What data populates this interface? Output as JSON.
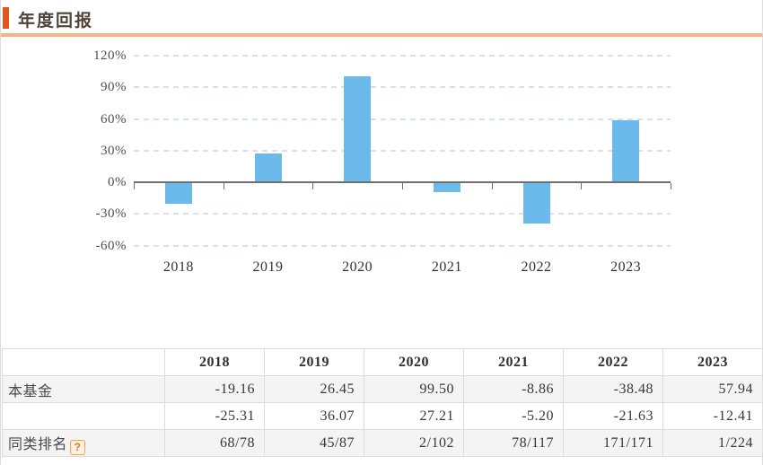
{
  "header": {
    "title": "年度回报"
  },
  "colors": {
    "accent_orange": "#E5541A",
    "underline_orange": "#FBB080",
    "bar_blue": "#6CBAEC",
    "grid_line": "#D9DFEC",
    "axis_line": "#6F6F6F"
  },
  "chart_data": {
    "type": "bar",
    "title": "年度回报",
    "categories": [
      "2018",
      "2019",
      "2020",
      "2021",
      "2022",
      "2023"
    ],
    "series": [
      {
        "name": "本基金",
        "values": [
          -19.16,
          26.45,
          99.5,
          -8.86,
          -38.48,
          57.94
        ]
      }
    ],
    "unit": "%",
    "xlabel": "",
    "ylabel": "",
    "ylim": [
      -60,
      120
    ],
    "yticks": [
      120,
      90,
      60,
      30,
      0,
      -30,
      -60
    ],
    "ytick_labels": [
      "120%",
      "90%",
      "60%",
      "30%",
      "0%",
      "-30%",
      "-60%"
    ],
    "grid": "horizontal-dashed",
    "legend": "none",
    "bar_color": "#6CBAEC"
  },
  "table": {
    "columns": [
      "",
      "2018",
      "2019",
      "2020",
      "2021",
      "2022",
      "2023"
    ],
    "help_glyph": "?",
    "rows": [
      {
        "label": "本基金",
        "has_help": false,
        "values": [
          "-19.16",
          "26.45",
          "99.50",
          "-8.86",
          "-38.48",
          "57.94"
        ]
      },
      {
        "label": "",
        "has_help": false,
        "values": [
          "-25.31",
          "36.07",
          "27.21",
          "-5.20",
          "-21.63",
          "-12.41"
        ]
      },
      {
        "label": "同类排名",
        "has_help": true,
        "values": [
          "68/78",
          "45/87",
          "2/102",
          "78/117",
          "171/171",
          "1/224"
        ]
      }
    ]
  }
}
